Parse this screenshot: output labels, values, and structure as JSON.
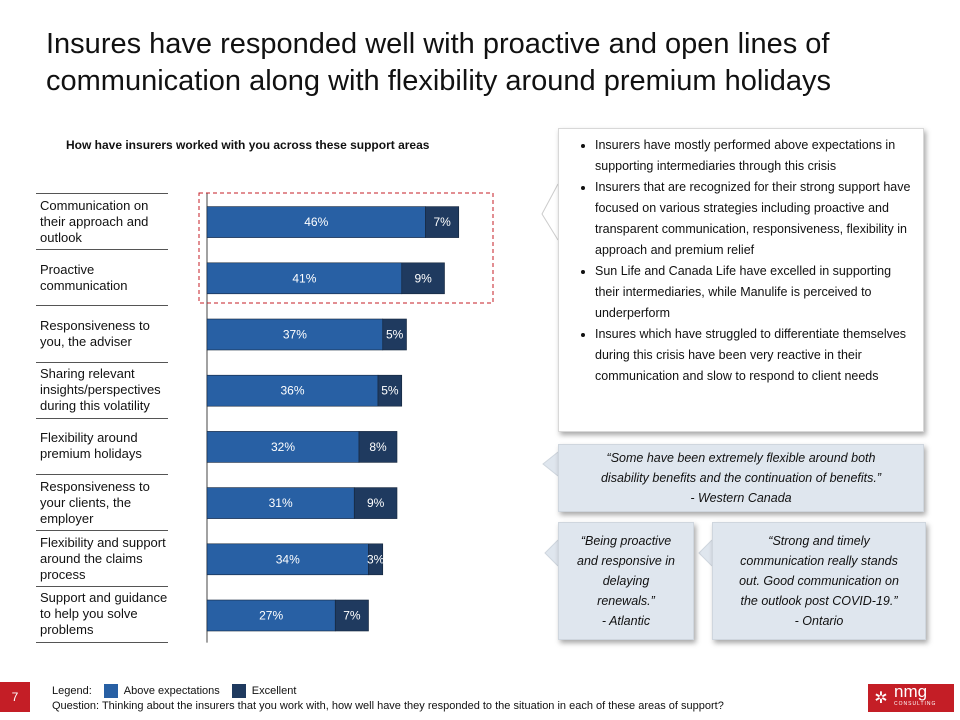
{
  "title": "Insures have responded well with proactive and open lines of communication along with flexibility around premium holidays",
  "chart_data": {
    "type": "bar",
    "stacked": true,
    "orientation": "horizontal",
    "title": "How have insurers worked with you across these support areas",
    "categories": [
      "Communication on their approach and outlook",
      "Proactive communication",
      "Responsiveness to you, the adviser",
      "Sharing relevant insights/perspectives during this volatility",
      "Flexibility around premium holidays",
      "Responsiveness to your clients, the employer",
      "Flexibility and support around the claims process",
      "Support and guidance to help you solve problems"
    ],
    "series": [
      {
        "name": "Above expectations",
        "color": "#2860a4",
        "values": [
          46,
          41,
          37,
          36,
          32,
          31,
          34,
          27
        ]
      },
      {
        "name": "Excellent",
        "color": "#1f3a5f",
        "values": [
          7,
          9,
          5,
          5,
          8,
          9,
          3,
          7
        ]
      }
    ],
    "highlight": "dashed red box around first two categories"
  },
  "bullets": [
    "Insurers have mostly performed above expectations in supporting intermediaries through this crisis",
    "Insurers that are recognized for their strong support have focused on various strategies including proactive and transparent communication, responsiveness, flexibility in approach and premium relief",
    "Sun Life and Canada Life have excelled in supporting their intermediaries, while Manulife is perceived to underperform",
    "Insures which have struggled to differentiate themselves during this crisis have been very reactive in their communication and slow to respond to client needs"
  ],
  "quotes": [
    {
      "text": "“Some have been extremely flexible around both disability benefits and the continuation of benefits.”",
      "source": "- Western Canada"
    },
    {
      "text": "“Being proactive and responsive in delaying renewals.”",
      "source": "- Atlantic"
    },
    {
      "text": "“Strong and timely communication really stands out. Good communication on the outlook post COVID-19.”",
      "source": "- Ontario"
    }
  ],
  "footer": {
    "page_number": "7",
    "legend_label": "Legend:",
    "legend_items": [
      "Above expectations",
      "Excellent"
    ],
    "question": "Question: Thinking about the  insurers that you work with, how well have they  responded to the situation in each of these areas of support?",
    "logo_text": "nmg",
    "logo_subtext": "CONSULTING"
  },
  "colors": {
    "accent_red": "#c41e26",
    "quote_bg": "#dfe6ee"
  }
}
